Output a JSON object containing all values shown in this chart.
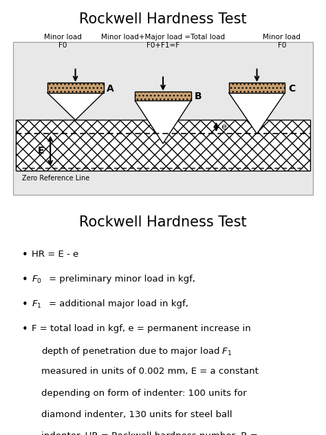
{
  "title1": "Rockwell Hardness Test",
  "title2": "Rockwell Hardness Test",
  "bg_color": "#e8e8e8",
  "material_color": "#c8a070",
  "label_A": "A",
  "label_B": "B",
  "label_C": "C",
  "label_E": "E",
  "label_e": "e",
  "minor_load_label_A": "Minor load\nF0",
  "minor_load_label_C": "Minor load\nF0",
  "total_load_label": "Minor load+Major load =Total load\nF0+F1=F",
  "zero_ref_label": "Zero Reference Line",
  "title_fontsize": 15,
  "diagram_label_fontsize": 7.5,
  "body_fontsize": 9.5
}
